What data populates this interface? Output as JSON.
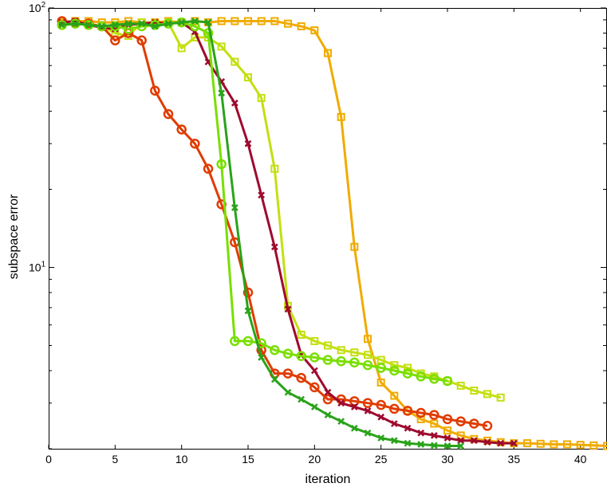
{
  "chart_data": {
    "type": "line",
    "title": "",
    "xlabel": "iteration",
    "ylabel": "subspace error",
    "xlim": [
      0,
      42
    ],
    "ylim": [
      2,
      100
    ],
    "yscale": "log",
    "grid": false,
    "legend": "none",
    "xticks": [
      "0",
      "5",
      "10",
      "15",
      "20",
      "25",
      "30",
      "35",
      "40"
    ],
    "yticks": [
      {
        "base": "10",
        "exp": "1",
        "value": 10
      },
      {
        "base": "10",
        "exp": "2",
        "value": 100
      }
    ],
    "series": [
      {
        "color": "#f0ab00",
        "marker": "square",
        "x": [
          1,
          2,
          3,
          4,
          5,
          6,
          7,
          8,
          9,
          10,
          11,
          12,
          13,
          14,
          15,
          16,
          17,
          18,
          19,
          20,
          21,
          22,
          23,
          24,
          25,
          26,
          27,
          28,
          29,
          30,
          31,
          32,
          33,
          34,
          35,
          36,
          37,
          38,
          39,
          40,
          41,
          42
        ],
        "y": [
          88,
          89,
          89,
          88,
          88,
          89,
          88,
          88,
          89,
          88,
          89,
          88,
          89,
          89,
          89,
          89,
          89,
          87,
          85,
          82,
          67,
          38,
          12,
          5.3,
          3.6,
          3.2,
          2.8,
          2.6,
          2.5,
          2.35,
          2.25,
          2.18,
          2.15,
          2.12,
          2.1,
          2.1,
          2.09,
          2.08,
          2.08,
          2.07,
          2.06,
          2.05
        ]
      },
      {
        "color": "#c4df11",
        "marker": "square",
        "x": [
          1,
          2,
          3,
          4,
          5,
          6,
          7,
          8,
          9,
          10,
          11,
          12,
          13,
          14,
          15,
          16,
          17,
          18,
          19,
          20,
          21,
          22,
          23,
          24,
          25,
          26,
          27,
          28,
          29,
          30,
          31,
          32,
          33,
          34
        ],
        "y": [
          87,
          88,
          86,
          85,
          80,
          78,
          88,
          87,
          88,
          70,
          77,
          77,
          71,
          62,
          54,
          45,
          24,
          7.1,
          5.5,
          5.2,
          5.0,
          4.8,
          4.7,
          4.6,
          4.4,
          4.2,
          4.1,
          3.9,
          3.8,
          3.65,
          3.5,
          3.35,
          3.25,
          3.15
        ]
      },
      {
        "color": "#e03c00",
        "marker": "circle",
        "x": [
          1,
          2,
          3,
          4,
          5,
          6,
          7,
          8,
          9,
          10,
          11,
          12,
          13,
          14,
          15,
          16,
          17,
          18,
          19,
          20,
          21,
          22,
          23,
          24,
          25,
          26,
          27,
          28,
          29,
          30,
          31,
          32,
          33
        ],
        "y": [
          89,
          88,
          87,
          85,
          75,
          80,
          75,
          48,
          39,
          34,
          30,
          24,
          17.5,
          12.5,
          8,
          4.8,
          3.9,
          3.9,
          3.75,
          3.45,
          3.1,
          3.1,
          3.05,
          3.0,
          2.95,
          2.85,
          2.8,
          2.75,
          2.7,
          2.6,
          2.55,
          2.5,
          2.45
        ]
      },
      {
        "color": "#9e0a2e",
        "marker": "cross",
        "x": [
          1,
          2,
          3,
          4,
          5,
          6,
          7,
          8,
          9,
          10,
          11,
          12,
          13,
          14,
          15,
          16,
          17,
          18,
          19,
          20,
          21,
          22,
          23,
          24,
          25,
          26,
          27,
          28,
          29,
          30,
          31,
          32,
          33,
          34,
          35
        ],
        "y": [
          88,
          89,
          86,
          84,
          83,
          86,
          87,
          88,
          87,
          88,
          81,
          62,
          52,
          43,
          30,
          19,
          12,
          6.9,
          4.6,
          4.0,
          3.3,
          3.0,
          2.9,
          2.8,
          2.65,
          2.5,
          2.4,
          2.3,
          2.25,
          2.2,
          2.15,
          2.15,
          2.12,
          2.1,
          2.1
        ]
      },
      {
        "color": "#79df00",
        "marker": "circle",
        "x": [
          1,
          2,
          3,
          4,
          5,
          6,
          7,
          8,
          9,
          10,
          11,
          12,
          13,
          14,
          15,
          16,
          17,
          18,
          19,
          20,
          21,
          22,
          23,
          24,
          25,
          26,
          27,
          28,
          29,
          30
        ],
        "y": [
          86,
          87,
          86,
          85,
          85,
          83,
          85,
          86,
          87,
          88,
          85,
          80,
          25,
          5.2,
          5.2,
          5.1,
          4.8,
          4.65,
          4.55,
          4.5,
          4.4,
          4.35,
          4.3,
          4.2,
          4.1,
          4.0,
          3.9,
          3.8,
          3.72,
          3.65
        ]
      },
      {
        "color": "#29a319",
        "marker": "cross",
        "x": [
          1,
          2,
          3,
          4,
          5,
          6,
          7,
          8,
          9,
          10,
          11,
          12,
          13,
          14,
          15,
          16,
          17,
          18,
          19,
          20,
          21,
          22,
          23,
          24,
          25,
          26,
          27,
          28,
          29,
          30,
          31
        ],
        "y": [
          86,
          87,
          86,
          85,
          86,
          87,
          87,
          85,
          87,
          88,
          89,
          88,
          47,
          17,
          6.8,
          4.5,
          3.7,
          3.3,
          3.1,
          2.9,
          2.7,
          2.55,
          2.4,
          2.3,
          2.2,
          2.15,
          2.1,
          2.08,
          2.06,
          2.05,
          2.05
        ]
      }
    ]
  }
}
